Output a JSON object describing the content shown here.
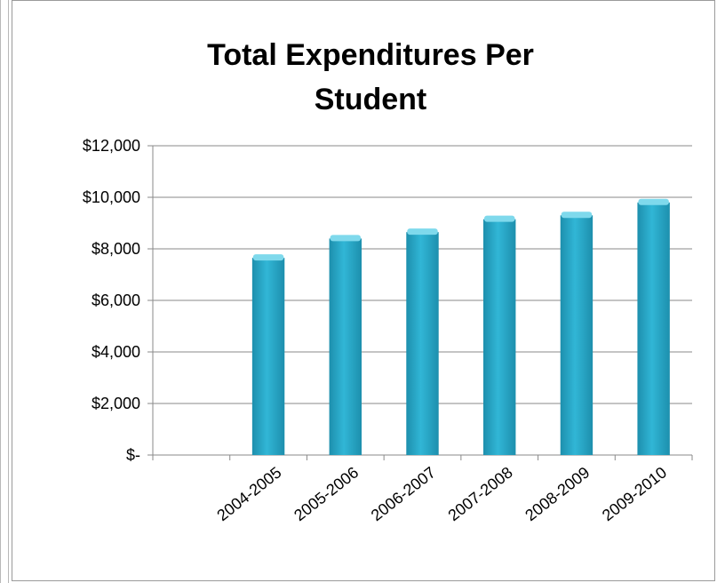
{
  "chart_data": {
    "type": "bar",
    "title_lines": [
      "Total Expenditures  Per",
      "Student"
    ],
    "categories": [
      "",
      "2004-2005",
      "2005-2006",
      "2006-2007",
      "2007-2008",
      "2008-2009",
      "2009-2010"
    ],
    "values": [
      null,
      7650,
      8400,
      8650,
      9150,
      9300,
      9800
    ],
    "ylim": [
      0,
      12000
    ],
    "yticks": [
      0,
      2000,
      4000,
      6000,
      8000,
      10000,
      12000
    ],
    "ytick_labels": [
      "$-",
      "$2,000",
      "$4,000",
      "$6,000",
      "$8,000",
      "$10,000",
      "$12,000"
    ],
    "grid": true,
    "legend": "none",
    "bar_color": "#31b6d6",
    "bar_color_dark": "#1d8fad",
    "bar_color_light": "#7fd9ec"
  }
}
